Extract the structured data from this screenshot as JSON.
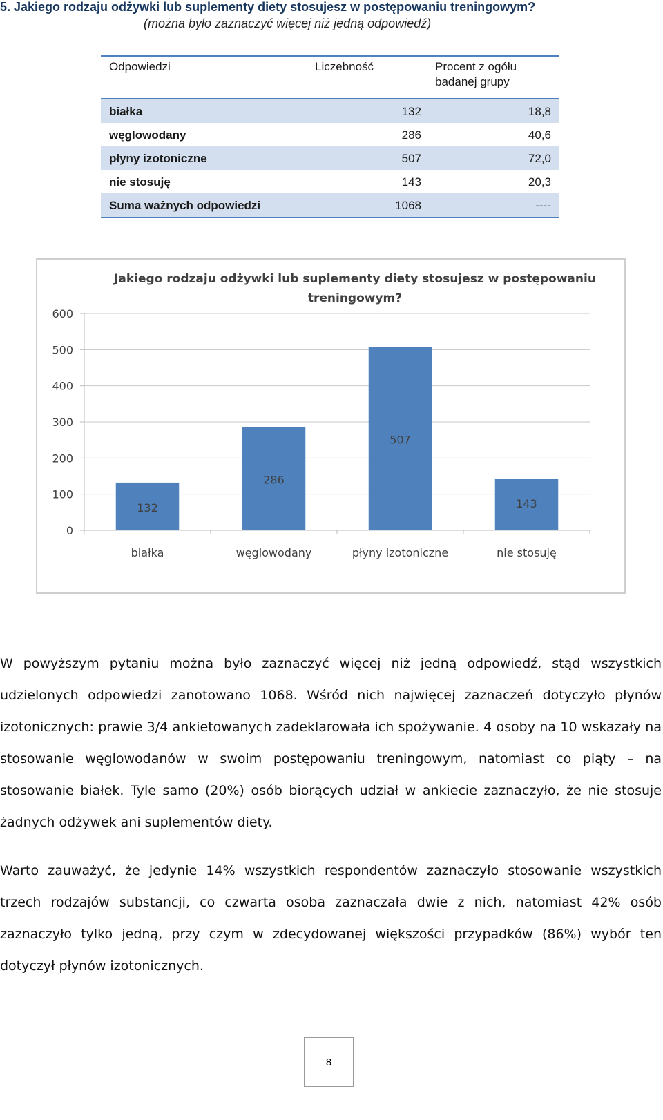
{
  "question": {
    "title": "5. Jakiego rodzaju odżywki lub suplementy diety stosujesz w postępowaniu treningowym?",
    "note": "(można było zaznaczyć więcej niż jedną odpowiedź)"
  },
  "table": {
    "headers": {
      "answer": "Odpowiedzi",
      "count": "Liczebność",
      "percent": "Procent z ogółu badanej grupy"
    },
    "rows": [
      {
        "label": "białka",
        "count": "132",
        "percent": "18,8"
      },
      {
        "label": "węglowodany",
        "count": "286",
        "percent": "40,6"
      },
      {
        "label": "płyny izotoniczne",
        "count": "507",
        "percent": "72,0"
      },
      {
        "label": "nie stosuję",
        "count": "143",
        "percent": "20,3"
      }
    ],
    "total": {
      "label": "Suma ważnych odpowiedzi",
      "count": "1068",
      "percent": "----"
    }
  },
  "chart_data": {
    "type": "bar",
    "title": "Jakiego rodzaju odżywki lub suplementy diety stosujesz w postępowaniu treningowym?",
    "categories": [
      "białka",
      "węglowodany",
      "płyny izotoniczne",
      "nie stosuję"
    ],
    "values": [
      132,
      286,
      507,
      143
    ],
    "ylim": [
      0,
      600
    ],
    "yticks": [
      0,
      100,
      200,
      300,
      400,
      500,
      600
    ],
    "grid": true,
    "bar_color": "#4f81bd",
    "data_labels": true
  },
  "paragraphs": [
    "W powyższym pytaniu można było zaznaczyć więcej niż jedną odpowiedź, stąd wszystkich udzielonych odpowiedzi zanotowano 1068. Wśród nich najwięcej zaznaczeń dotyczyło płynów izotonicznych: prawie 3/4 ankietowanych zadeklarowała ich spożywanie. 4 osoby na 10 wskazały na stosowanie węglowodanów w swoim postępowaniu treningowym, natomiast co piąty – na stosowanie białek. Tyle samo (20%) osób biorących udział w ankiecie zaznaczyło, że nie stosuje żadnych odżywek ani suplementów diety.",
    "Warto zauważyć, że jedynie 14% wszystkich respondentów zaznaczyło stosowanie wszystkich trzech rodzajów substancji, co czwarta osoba zaznaczała dwie z nich, natomiast 42% osób zaznaczyło tylko jedną, przy czym w zdecydowanej większości przypadków (86%) wybór ten dotyczył płynów izotonicznych."
  ],
  "page_number": "8"
}
